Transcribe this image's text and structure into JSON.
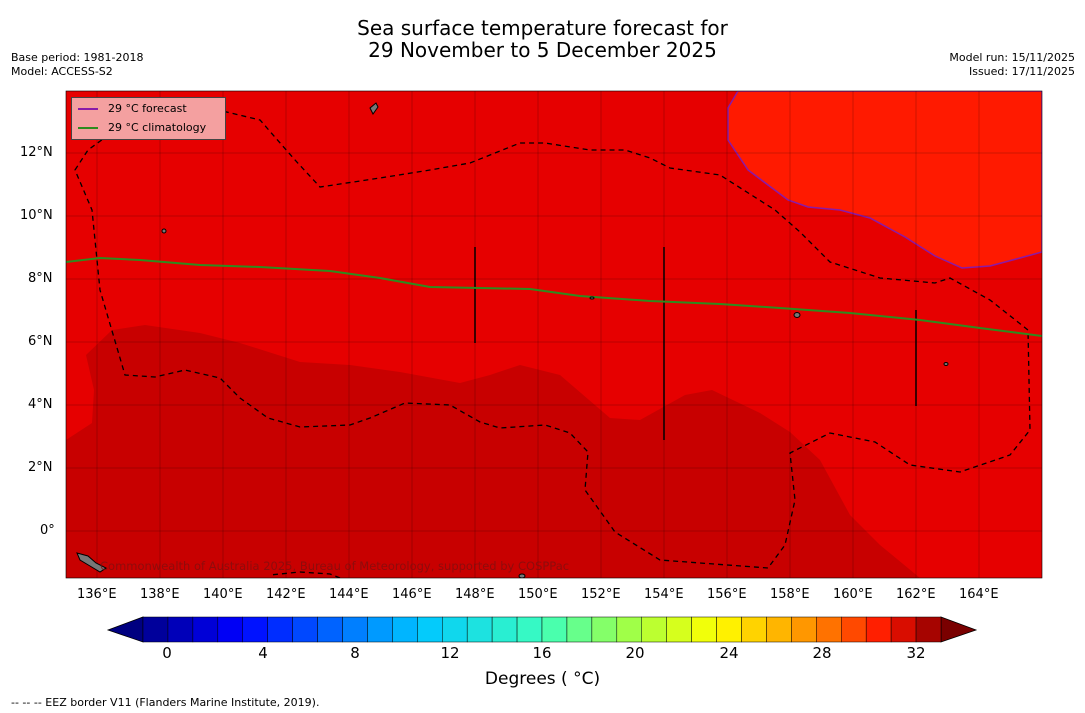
{
  "header": {
    "title_line1": "Sea surface temperature forecast for",
    "title_line2": "29 November to 5 December 2025",
    "base_period": "Base period: 1981-2018",
    "model": "Model: ACCESS-S2",
    "model_run": "Model run: 15/11/2025",
    "issued": "Issued: 17/11/2025"
  },
  "map": {
    "lat_labels": [
      "12°N",
      "10°N",
      "8°N",
      "6°N",
      "4°N",
      "2°N",
      "0°"
    ],
    "lon_labels": [
      "136°E",
      "138°E",
      "140°E",
      "142°E",
      "144°E",
      "146°E",
      "148°E",
      "150°E",
      "152°E",
      "154°E",
      "156°E",
      "158°E",
      "160°E",
      "162°E",
      "164°E"
    ],
    "credit": "Commonwealth of Australia 2025, Bureau of Meteorology, supported by COSPPac",
    "colors": {
      "sst_28_30": "#e60000",
      "sst_30_31": "#c80000",
      "sst_above_31": "#ff1a00",
      "forecast_line": "#8a1aa8",
      "climatology_line": "#2e8b1e"
    }
  },
  "legend": {
    "forecast": "29 °C  forecast",
    "climatology": "29 °C  climatology"
  },
  "colorbar": {
    "ticks": [
      "0",
      "4",
      "8",
      "12",
      "16",
      "20",
      "24",
      "28",
      "32"
    ],
    "label": "Degrees ( °C)"
  },
  "footnote": "--  --  -- EEZ border V11 (Flanders Marine Institute, 2019)."
}
